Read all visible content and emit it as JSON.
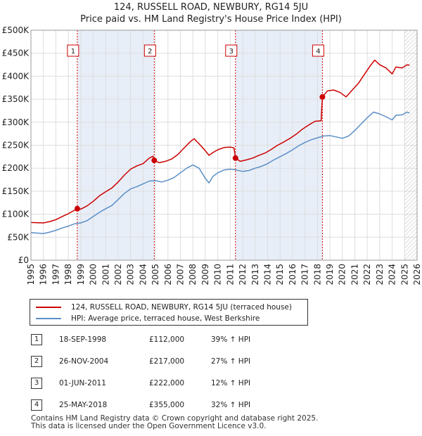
{
  "title_line1": "124, RUSSELL ROAD, NEWBURY, RG14 5JU",
  "title_line2": "Price paid vs. HM Land Registry's House Price Index (HPI)",
  "chart_data": {
    "type": "line",
    "title": "124, RUSSELL ROAD, NEWBURY, RG14 5JU",
    "subtitle": "Price paid vs. HM Land Registry's House Price Index (HPI)",
    "xlabel": "",
    "ylabel": "",
    "xlim": [
      1995,
      2026
    ],
    "ylim": [
      0,
      500000
    ],
    "x_ticks": [
      "1995",
      "1996",
      "1997",
      "1998",
      "1999",
      "2000",
      "2001",
      "2002",
      "2003",
      "2004",
      "2005",
      "2006",
      "2007",
      "2008",
      "2009",
      "2010",
      "2011",
      "2012",
      "2013",
      "2014",
      "2015",
      "2016",
      "2017",
      "2018",
      "2019",
      "2020",
      "2021",
      "2022",
      "2023",
      "2024",
      "2025",
      "2026"
    ],
    "y_ticks": [
      {
        "value": 0,
        "label": "£0"
      },
      {
        "value": 50000,
        "label": "£50K"
      },
      {
        "value": 100000,
        "label": "£100K"
      },
      {
        "value": 150000,
        "label": "£150K"
      },
      {
        "value": 200000,
        "label": "£200K"
      },
      {
        "value": 250000,
        "label": "£250K"
      },
      {
        "value": 300000,
        "label": "£300K"
      },
      {
        "value": 350000,
        "label": "£350K"
      },
      {
        "value": 400000,
        "label": "£400K"
      },
      {
        "value": 450000,
        "label": "£450K"
      },
      {
        "value": 500000,
        "label": "£500K"
      }
    ],
    "grid": true,
    "future_hatch_from": 2025.0,
    "shaded_spans": [
      [
        1998.72,
        2004.9
      ],
      [
        2011.42,
        2018.4
      ]
    ],
    "series": [
      {
        "name": "124, RUSSELL ROAD, NEWBURY, RG14 5JU (terraced house)",
        "color": "#cc0000",
        "points": [
          [
            1995.0,
            82000
          ],
          [
            1996.0,
            81000
          ],
          [
            1996.5,
            84000
          ],
          [
            1997.0,
            88000
          ],
          [
            1997.5,
            95000
          ],
          [
            1998.0,
            101000
          ],
          [
            1998.72,
            112000
          ],
          [
            1999.0,
            111000
          ],
          [
            1999.5,
            118000
          ],
          [
            2000.0,
            128000
          ],
          [
            2000.5,
            140000
          ],
          [
            2001.0,
            149000
          ],
          [
            2001.5,
            157000
          ],
          [
            2002.0,
            170000
          ],
          [
            2002.5,
            185000
          ],
          [
            2003.0,
            198000
          ],
          [
            2003.5,
            205000
          ],
          [
            2004.0,
            210000
          ],
          [
            2004.5,
            222000
          ],
          [
            2004.8,
            226000
          ],
          [
            2004.9,
            217000
          ],
          [
            2005.3,
            212000
          ],
          [
            2005.8,
            215000
          ],
          [
            2006.3,
            220000
          ],
          [
            2006.8,
            230000
          ],
          [
            2007.3,
            244000
          ],
          [
            2007.8,
            258000
          ],
          [
            2008.1,
            264000
          ],
          [
            2008.5,
            253000
          ],
          [
            2009.0,
            238000
          ],
          [
            2009.3,
            228000
          ],
          [
            2009.6,
            234000
          ],
          [
            2010.0,
            240000
          ],
          [
            2010.5,
            245000
          ],
          [
            2011.0,
            246000
          ],
          [
            2011.3,
            244000
          ],
          [
            2011.42,
            222000
          ],
          [
            2011.8,
            215000
          ],
          [
            2012.3,
            218000
          ],
          [
            2012.8,
            222000
          ],
          [
            2013.3,
            228000
          ],
          [
            2013.8,
            233000
          ],
          [
            2014.3,
            241000
          ],
          [
            2014.8,
            250000
          ],
          [
            2015.3,
            257000
          ],
          [
            2015.8,
            265000
          ],
          [
            2016.3,
            274000
          ],
          [
            2016.8,
            285000
          ],
          [
            2017.3,
            294000
          ],
          [
            2017.8,
            302000
          ],
          [
            2018.3,
            303000
          ],
          [
            2018.35,
            330000
          ],
          [
            2018.4,
            355000
          ],
          [
            2018.8,
            368000
          ],
          [
            2019.3,
            370000
          ],
          [
            2019.8,
            365000
          ],
          [
            2020.3,
            355000
          ],
          [
            2020.8,
            370000
          ],
          [
            2021.3,
            385000
          ],
          [
            2021.8,
            405000
          ],
          [
            2022.3,
            425000
          ],
          [
            2022.6,
            435000
          ],
          [
            2023.0,
            425000
          ],
          [
            2023.5,
            418000
          ],
          [
            2024.0,
            405000
          ],
          [
            2024.3,
            420000
          ],
          [
            2024.8,
            418000
          ],
          [
            2025.2,
            425000
          ],
          [
            2025.4,
            424000
          ]
        ]
      },
      {
        "name": "HPI: Average price, terraced house, West Berkshire",
        "color": "#5b8fc7",
        "points": [
          [
            1995.0,
            60000
          ],
          [
            1996.0,
            58000
          ],
          [
            1996.5,
            61000
          ],
          [
            1997.0,
            65000
          ],
          [
            1997.5,
            70000
          ],
          [
            1998.0,
            74000
          ],
          [
            1998.5,
            79000
          ],
          [
            1999.0,
            81000
          ],
          [
            1999.5,
            86000
          ],
          [
            2000.0,
            95000
          ],
          [
            2000.5,
            104000
          ],
          [
            2001.0,
            112000
          ],
          [
            2001.5,
            119000
          ],
          [
            2002.0,
            132000
          ],
          [
            2002.5,
            145000
          ],
          [
            2003.0,
            155000
          ],
          [
            2003.5,
            160000
          ],
          [
            2004.0,
            166000
          ],
          [
            2004.5,
            172000
          ],
          [
            2005.0,
            173000
          ],
          [
            2005.5,
            170000
          ],
          [
            2006.0,
            174000
          ],
          [
            2006.5,
            180000
          ],
          [
            2007.0,
            190000
          ],
          [
            2007.5,
            200000
          ],
          [
            2008.0,
            207000
          ],
          [
            2008.5,
            200000
          ],
          [
            2009.0,
            178000
          ],
          [
            2009.3,
            168000
          ],
          [
            2009.6,
            182000
          ],
          [
            2010.0,
            190000
          ],
          [
            2010.5,
            196000
          ],
          [
            2011.0,
            198000
          ],
          [
            2011.5,
            196000
          ],
          [
            2012.0,
            193000
          ],
          [
            2012.5,
            195000
          ],
          [
            2013.0,
            200000
          ],
          [
            2013.5,
            204000
          ],
          [
            2014.0,
            210000
          ],
          [
            2014.5,
            218000
          ],
          [
            2015.0,
            225000
          ],
          [
            2015.5,
            232000
          ],
          [
            2016.0,
            240000
          ],
          [
            2016.5,
            249000
          ],
          [
            2017.0,
            256000
          ],
          [
            2017.5,
            262000
          ],
          [
            2018.0,
            266000
          ],
          [
            2018.5,
            270000
          ],
          [
            2019.0,
            271000
          ],
          [
            2019.5,
            268000
          ],
          [
            2020.0,
            265000
          ],
          [
            2020.5,
            270000
          ],
          [
            2021.0,
            282000
          ],
          [
            2021.5,
            296000
          ],
          [
            2022.0,
            310000
          ],
          [
            2022.5,
            322000
          ],
          [
            2023.0,
            318000
          ],
          [
            2023.5,
            312000
          ],
          [
            2024.0,
            305000
          ],
          [
            2024.3,
            315000
          ],
          [
            2024.8,
            316000
          ],
          [
            2025.2,
            322000
          ],
          [
            2025.4,
            320000
          ]
        ]
      }
    ],
    "sales": [
      {
        "num": "1",
        "x": 1998.72,
        "price": 112000
      },
      {
        "num": "2",
        "x": 2004.9,
        "price": 217000
      },
      {
        "num": "3",
        "x": 2011.42,
        "price": 222000
      },
      {
        "num": "4",
        "x": 2018.4,
        "price": 355000
      }
    ]
  },
  "legend": {
    "property_label": "124, RUSSELL ROAD, NEWBURY, RG14 5JU (terraced house)",
    "property_color": "#cc0000",
    "hpi_label": "HPI: Average price, terraced house, West Berkshire",
    "hpi_color": "#5b8fc7"
  },
  "transactions": [
    {
      "num": "1",
      "date": "18-SEP-1998",
      "price": "£112,000",
      "hpi": "39% ↑ HPI"
    },
    {
      "num": "2",
      "date": "26-NOV-2004",
      "price": "£217,000",
      "hpi": "27% ↑ HPI"
    },
    {
      "num": "3",
      "date": "01-JUN-2011",
      "price": "£222,000",
      "hpi": "12% ↑ HPI"
    },
    {
      "num": "4",
      "date": "25-MAY-2018",
      "price": "£355,000",
      "hpi": "32% ↑ HPI"
    }
  ],
  "footer_line1": "Contains HM Land Registry data © Crown copyright and database right 2025.",
  "footer_line2": "This data is licensed under the Open Government Licence v3.0."
}
